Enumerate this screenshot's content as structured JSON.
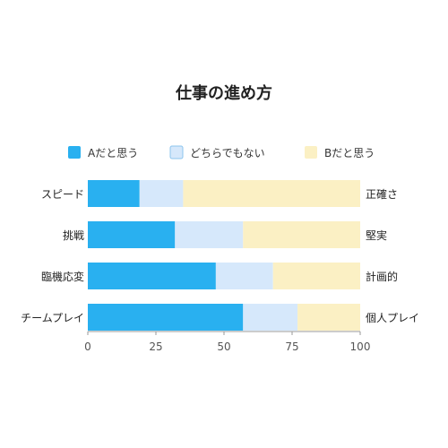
{
  "chart_data": {
    "type": "bar",
    "orientation": "horizontal",
    "stacked": true,
    "title": "仕事の進め方",
    "categories": [
      "スピード",
      "挑戦",
      "臨機応変",
      "チームプレイ"
    ],
    "right_labels": [
      "正確さ",
      "堅実",
      "計画的",
      "個人プレイ"
    ],
    "series": [
      {
        "name": "Aだと思う",
        "values": [
          19,
          32,
          47,
          57
        ],
        "color": "#29b0f0"
      },
      {
        "name": "どちらでもない",
        "values": [
          16,
          25,
          21,
          20
        ],
        "color": "#d6e8fb"
      },
      {
        "name": "Bだと思う",
        "values": [
          65,
          43,
          32,
          23
        ],
        "color": "#fbf0c4"
      }
    ],
    "xlim": [
      0,
      100
    ],
    "xticks": [
      0,
      25,
      50,
      75,
      100
    ],
    "grid": false,
    "legend_position": "top"
  }
}
